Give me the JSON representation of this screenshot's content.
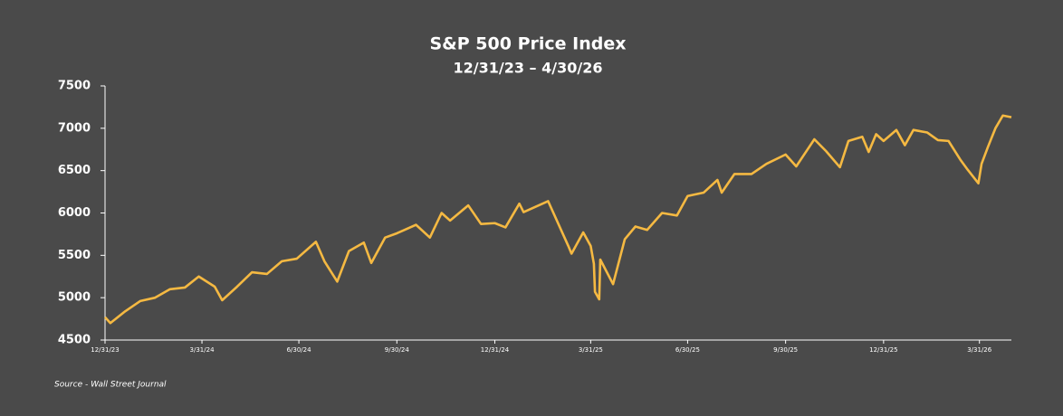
{
  "chart_data": {
    "type": "line",
    "title": "S&P 500 Price Index",
    "subtitle": "12/31/23 – 4/30/26",
    "source": "Source - Wall Street Journal",
    "x": [
      "12/31/23",
      "1/5/24",
      "1/19/24",
      "2/2/24",
      "2/16/24",
      "3/1/24",
      "3/15/24",
      "3/28/24",
      "4/12/24",
      "4/19/24",
      "5/3/24",
      "5/17/24",
      "5/31/24",
      "6/14/24",
      "6/28/24",
      "7/16/24",
      "7/24/24",
      "8/5/24",
      "8/16/24",
      "8/30/24",
      "9/6/24",
      "9/19/24",
      "9/30/24",
      "10/18/24",
      "10/31/24",
      "11/11/24",
      "11/19/24",
      "12/6/24",
      "12/18/24",
      "12/31/24",
      "1/10/25",
      "1/23/25",
      "1/27/25",
      "2/19/25",
      "3/10/25",
      "3/13/25",
      "3/24/25",
      "3/31/25",
      "4/3/25",
      "4/4/25",
      "4/8/25",
      "4/9/25",
      "4/21/25",
      "5/2/25",
      "5/12/25",
      "5/23/25",
      "6/6/25",
      "6/20/25",
      "6/30/25",
      "7/15/25",
      "7/28/25",
      "8/1/25",
      "8/13/25",
      "8/29/25",
      "9/12/25",
      "9/30/25",
      "10/10/25",
      "10/27/25",
      "11/7/25",
      "11/20/25",
      "11/28/25",
      "12/11/25",
      "12/17/25",
      "12/24/25",
      "12/31/25",
      "1/12/26",
      "1/20/26",
      "1/28/26",
      "2/10/26",
      "2/20/26",
      "3/2/26",
      "3/13/26",
      "3/20/26",
      "3/30/26",
      "4/2/26",
      "4/8/26",
      "4/15/26",
      "4/22/26",
      "4/30/26"
    ],
    "series": [
      {
        "name": "S&P 500",
        "color": "#f5b942",
        "values": [
          4770,
          4700,
          4840,
          4960,
          5000,
          5100,
          5120,
          5250,
          5130,
          4970,
          5130,
          5300,
          5280,
          5430,
          5460,
          5660,
          5430,
          5190,
          5550,
          5650,
          5410,
          5710,
          5760,
          5860,
          5710,
          6000,
          5910,
          6090,
          5870,
          5880,
          5830,
          6110,
          6010,
          6140,
          5610,
          5520,
          5770,
          5610,
          5400,
          5070,
          4980,
          5450,
          5160,
          5690,
          5840,
          5800,
          6000,
          5970,
          6200,
          6240,
          6390,
          6240,
          6460,
          6460,
          6580,
          6690,
          6550,
          6870,
          6730,
          6540,
          6850,
          6900,
          6720,
          6930,
          6850,
          6980,
          6800,
          6980,
          6950,
          6860,
          6850,
          6630,
          6510,
          6350,
          6580,
          6780,
          7000,
          7150,
          7130
        ]
      }
    ],
    "xlim": [
      "12/31/23",
      "4/30/26"
    ],
    "xticks": [
      "12/31/23",
      "3/31/24",
      "6/30/24",
      "9/30/24",
      "12/31/24",
      "3/31/25",
      "6/30/25",
      "9/30/25",
      "12/31/25",
      "3/31/26"
    ],
    "ylim": [
      4500,
      7500
    ],
    "yticks": [
      4500,
      5000,
      5500,
      6000,
      6500,
      7000,
      7500
    ],
    "grid": false
  }
}
